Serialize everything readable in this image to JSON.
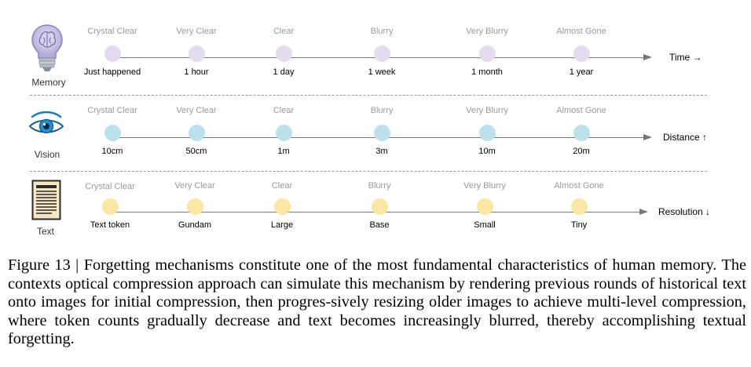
{
  "colors": {
    "memory_dot": "#e4dcee",
    "vision_dot": "#bde1ec",
    "text_dot": "#fbe6a4",
    "axis": "#777777",
    "clarity_text": "#9a9a9a"
  },
  "rows": [
    {
      "id": "memory",
      "label": "Memory",
      "icon": "brain-bulb-icon",
      "axis_label": "Time →",
      "clarity": [
        "Crystal Clear",
        "Very Clear",
        "Clear",
        "Blurry",
        "Very Blurry",
        "Almost Gone"
      ],
      "stages": [
        "Just happened",
        "1 hour",
        "1 day",
        "1 week",
        "1 month",
        "1 year"
      ]
    },
    {
      "id": "vision",
      "label": "Vision",
      "icon": "eye-icon",
      "axis_label": "Distance ↑",
      "clarity": [
        "Crystal Clear",
        "Very Clear",
        "Clear",
        "Blurry",
        "Very Blurry",
        "Almost Gone"
      ],
      "stages": [
        "10cm",
        "50cm",
        "1m",
        "3m",
        "10m",
        "20m"
      ]
    },
    {
      "id": "text",
      "label": "Text",
      "icon": "document-icon",
      "axis_label": "Resolution ↓",
      "clarity": [
        "Crystal Clear",
        "Very Clear",
        "Clear",
        "Blurry",
        "Very Blurry",
        "Almost Gone"
      ],
      "stages": [
        "Text token",
        "Gundam",
        "Large",
        "Base",
        "Small",
        "Tiny"
      ]
    }
  ],
  "caption": "Figure 13 | Forgetting mechanisms constitute one of the most fundamental characteristics of human memory. The contexts optical compression approach can simulate this mechanism by rendering previous rounds of historical text onto images for initial compression, then progres-sively resizing older images to achieve multi-level compression, where token counts gradually decrease and text becomes increasingly blurred, thereby accomplishing textual forgetting."
}
